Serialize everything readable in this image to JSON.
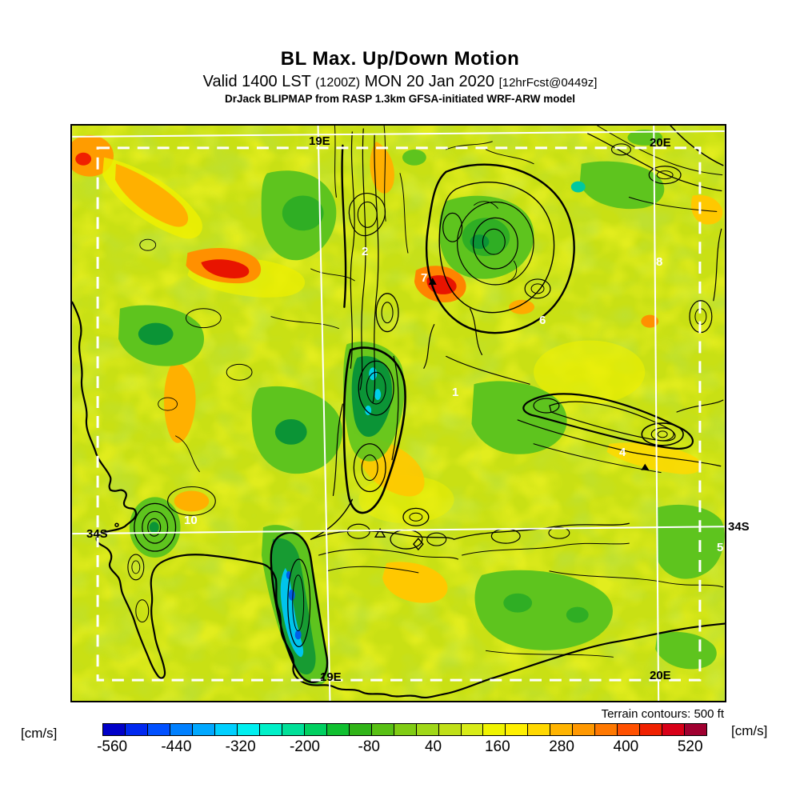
{
  "header": {
    "title": "BL Max. Up/Down Motion",
    "valid_prefix": "Valid 1400 LST",
    "valid_zulu": "(1200Z)",
    "valid_date": "MON 20 Jan 2020",
    "valid_fcst": "[12hrFcst@0449z]",
    "model_line": "DrJack BLIPMAP from RASP 1.3km GFSA-initiated WRF-ARW model"
  },
  "map": {
    "grid_labels": {
      "top_19e": "19E",
      "top_20e": "20E",
      "left_34s": "34S",
      "right_34s": "34S",
      "bottom_19e": "19E",
      "bottom_20e": "20E"
    },
    "site_numbers": [
      "2",
      "7",
      "8",
      "6",
      "1",
      "4",
      "10",
      "5"
    ]
  },
  "footer": {
    "terrain_note": "Terrain contours: 500 ft",
    "units_left": "[cm/s]",
    "units_right": "[cm/s]"
  },
  "colorbar": {
    "ticks": [
      "-560",
      "-440",
      "-320",
      "-200",
      "-80",
      "40",
      "160",
      "280",
      "400",
      "520"
    ],
    "colors": [
      "#0000c8",
      "#0028f0",
      "#0050ff",
      "#0080ff",
      "#00a8ff",
      "#00d0ff",
      "#00f0f0",
      "#00f0c8",
      "#00e098",
      "#00d060",
      "#10c030",
      "#30b418",
      "#58c014",
      "#80cc14",
      "#a0d818",
      "#c0e018",
      "#d8ec18",
      "#f0f400",
      "#fff000",
      "#ffd800",
      "#ffb400",
      "#ff9800",
      "#ff7800",
      "#ff5000",
      "#f02000",
      "#d80018",
      "#a00030"
    ],
    "tick_start_pct": 1.6,
    "tick_step_pct": 10.62
  },
  "colors": {
    "land_base": "#c9e014",
    "contour": "#000000",
    "grid": "#ffffff"
  }
}
